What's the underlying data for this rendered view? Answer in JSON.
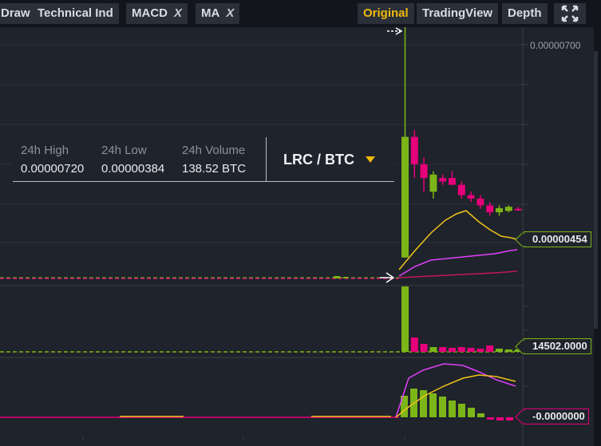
{
  "toolbar": {
    "draw": "Draw",
    "technical_ind": "Technical Ind",
    "macd": "MACD",
    "ma": "MA",
    "remove_glyph": "X",
    "original": "Original",
    "tradingview": "TradingView",
    "depth": "Depth"
  },
  "price_axis": {
    "top_label": "0.00000700"
  },
  "stats": {
    "high_label": "24h High",
    "high_value": "0.00000720",
    "low_label": "24h Low",
    "low_value": "0.00000384",
    "volume_label": "24h Volume",
    "volume_value": "138.52 BTC",
    "pair": "LRC / BTC"
  },
  "tags": {
    "last_price": "0.00000454",
    "volume": "14502.0000",
    "macd": "-0.0000000"
  },
  "colors": {
    "up": "#7cb518",
    "down": "#e6007a",
    "ma_fast": "#f0c419",
    "ma_slow": "#e040fb",
    "ma_long": "#c2185b",
    "accent": "#f0b90b"
  },
  "chart_data": {
    "type": "candlestick",
    "price_ylim": [
      3.5e-06,
      7.2e-06
    ],
    "candles": [
      {
        "o": 3.84e-06,
        "h": 7.2e-06,
        "l": 3.84e-06,
        "c": 5.6e-06
      },
      {
        "o": 5.6e-06,
        "h": 5.7e-06,
        "l": 5e-06,
        "c": 5.2e-06
      },
      {
        "o": 5.2e-06,
        "h": 5.3e-06,
        "l": 4.8e-06,
        "c": 5e-06
      },
      {
        "o": 4.8e-06,
        "h": 5.1e-06,
        "l": 4.7e-06,
        "c": 5.05e-06
      },
      {
        "o": 5e-06,
        "h": 5.05e-06,
        "l": 4.9e-06,
        "c": 4.95e-06
      },
      {
        "o": 5e-06,
        "h": 5.1e-06,
        "l": 4.9e-06,
        "c": 4.9e-06
      },
      {
        "o": 4.9e-06,
        "h": 4.95e-06,
        "l": 4.7e-06,
        "c": 4.75e-06
      },
      {
        "o": 4.75e-06,
        "h": 4.8e-06,
        "l": 4.65e-06,
        "c": 4.7e-06
      },
      {
        "o": 4.7e-06,
        "h": 4.75e-06,
        "l": 4.55e-06,
        "c": 4.6e-06
      },
      {
        "o": 4.6e-06,
        "h": 4.65e-06,
        "l": 4.45e-06,
        "c": 4.5e-06
      },
      {
        "o": 4.5e-06,
        "h": 4.6e-06,
        "l": 4.45e-06,
        "c": 4.56e-06
      },
      {
        "o": 4.52e-06,
        "h": 4.6e-06,
        "l": 4.5e-06,
        "c": 4.58e-06
      },
      {
        "o": 4.55e-06,
        "h": 4.58e-06,
        "l": 4.52e-06,
        "c": 4.54e-06
      }
    ]
  }
}
